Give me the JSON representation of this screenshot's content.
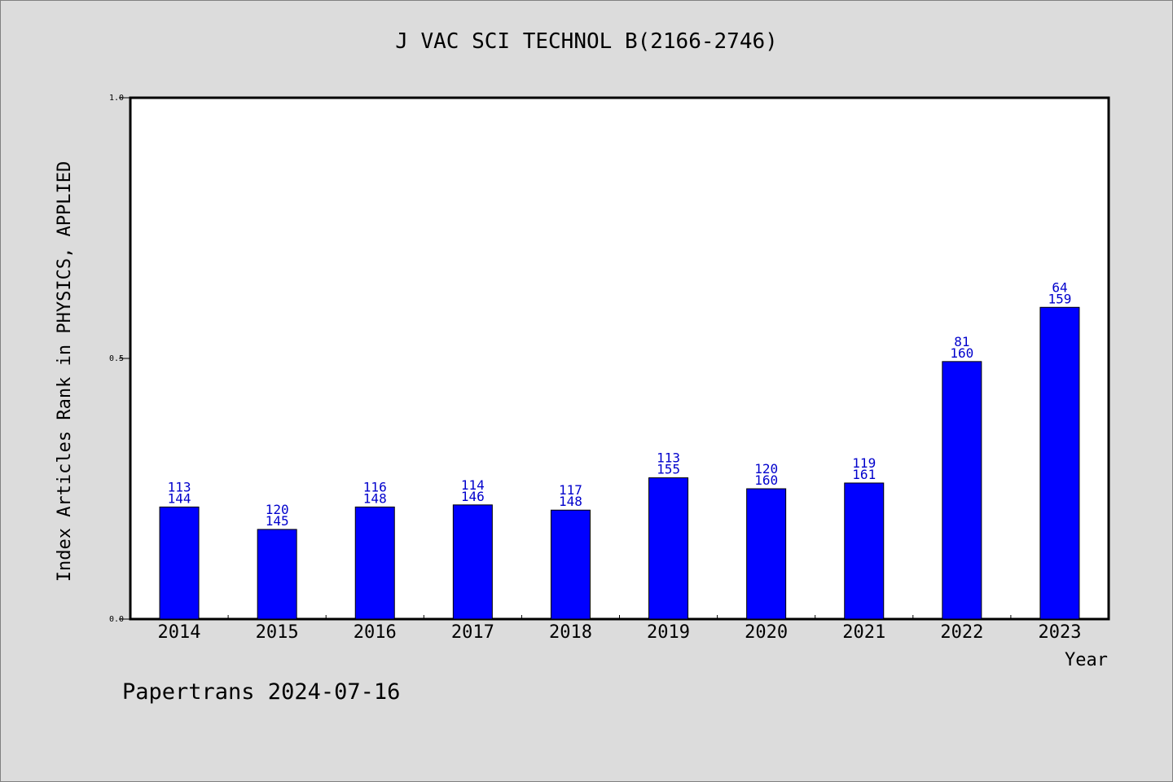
{
  "chart_data": {
    "type": "bar",
    "title": "J VAC SCI TECHNOL B(2166-2746)",
    "xlabel": "Year",
    "ylabel": "Index Articles Rank in PHYSICS, APPLIED",
    "ylim": [
      0,
      1.0
    ],
    "yticks": [
      "0.0",
      "0.5",
      "1.0"
    ],
    "categories": [
      "2014",
      "2015",
      "2016",
      "2017",
      "2018",
      "2019",
      "2020",
      "2021",
      "2022",
      "2023"
    ],
    "values": [
      0.215,
      0.172,
      0.215,
      0.219,
      0.209,
      0.271,
      0.25,
      0.261,
      0.494,
      0.598
    ],
    "rank": [
      "113",
      "120",
      "116",
      "114",
      "117",
      "113",
      "120",
      "119",
      "81",
      "64"
    ],
    "total": [
      "144",
      "145",
      "148",
      "146",
      "148",
      "155",
      "160",
      "161",
      "160",
      "159"
    ],
    "bar_color": "#0000ff",
    "label_color": "#0000cc",
    "grid": false,
    "legend": "none"
  },
  "footer": "Papertrans 2024-07-16"
}
